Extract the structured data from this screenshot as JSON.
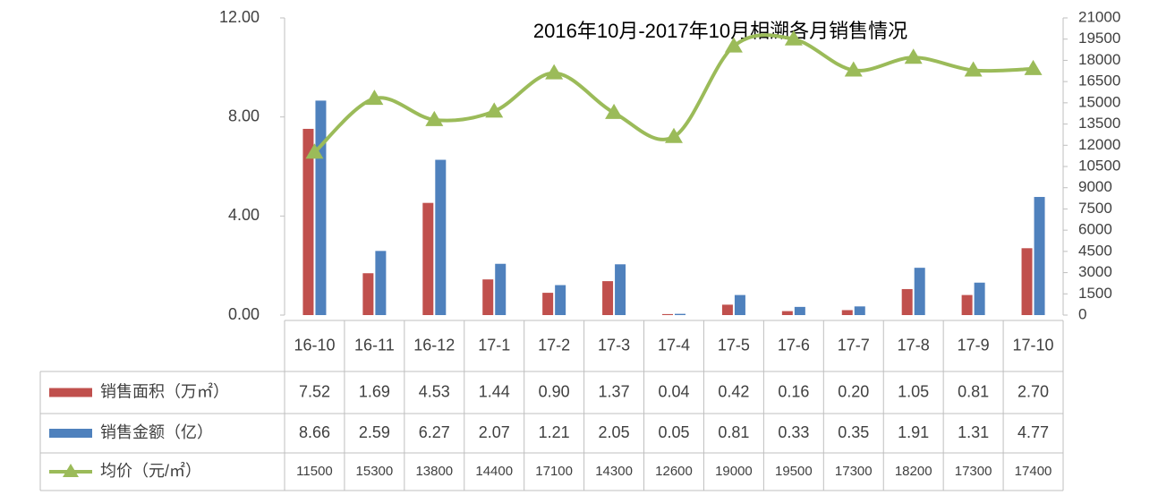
{
  "chart_data": {
    "type": "bar_line",
    "title": "2016年10月-2017年10月相溯各月销售情况",
    "categories": [
      "16-10",
      "16-11",
      "16-12",
      "17-1",
      "17-2",
      "17-3",
      "17-4",
      "17-5",
      "17-6",
      "17-7",
      "17-8",
      "17-9",
      "17-10"
    ],
    "series": [
      {
        "name": "销售面积（万㎡）",
        "color": "#c0504d",
        "type": "bar",
        "axis": "y",
        "values": [
          7.52,
          1.69,
          4.53,
          1.44,
          0.9,
          1.37,
          0.04,
          0.42,
          0.16,
          0.2,
          1.05,
          0.81,
          2.7
        ],
        "value_labels": [
          "7.52",
          "1.69",
          "4.53",
          "1.44",
          "0.90",
          "1.37",
          "0.04",
          "0.42",
          "0.16",
          "0.20",
          "1.05",
          "0.81",
          "2.70"
        ]
      },
      {
        "name": "销售金额（亿）",
        "color": "#4f81bd",
        "type": "bar",
        "axis": "y",
        "values": [
          8.66,
          2.59,
          6.27,
          2.07,
          1.21,
          2.05,
          0.05,
          0.81,
          0.33,
          0.35,
          1.91,
          1.31,
          4.77
        ],
        "value_labels": [
          "8.66",
          "2.59",
          "6.27",
          "2.07",
          "1.21",
          "2.05",
          "0.05",
          "0.81",
          "0.33",
          "0.35",
          "1.91",
          "1.31",
          "4.77"
        ]
      },
      {
        "name": "均价（元/㎡）",
        "color": "#9bbb59",
        "type": "line",
        "axis": "y2",
        "values": [
          11500,
          15300,
          13800,
          14400,
          17100,
          14300,
          12600,
          19000,
          19500,
          17300,
          18200,
          17300,
          17400
        ]
      }
    ],
    "ylim": [
      0,
      12
    ],
    "yticks": [
      {
        "value": 0,
        "label": "0.00"
      },
      {
        "value": 4,
        "label": "4.00"
      },
      {
        "value": 8,
        "label": "8.00"
      },
      {
        "value": 12,
        "label": "12.00"
      }
    ],
    "y2lim": [
      0,
      21000
    ],
    "y2ticks": [
      0,
      1500,
      3000,
      4500,
      6000,
      7500,
      9000,
      10500,
      12000,
      13500,
      15000,
      16500,
      18000,
      19500,
      21000
    ],
    "grid": false
  }
}
